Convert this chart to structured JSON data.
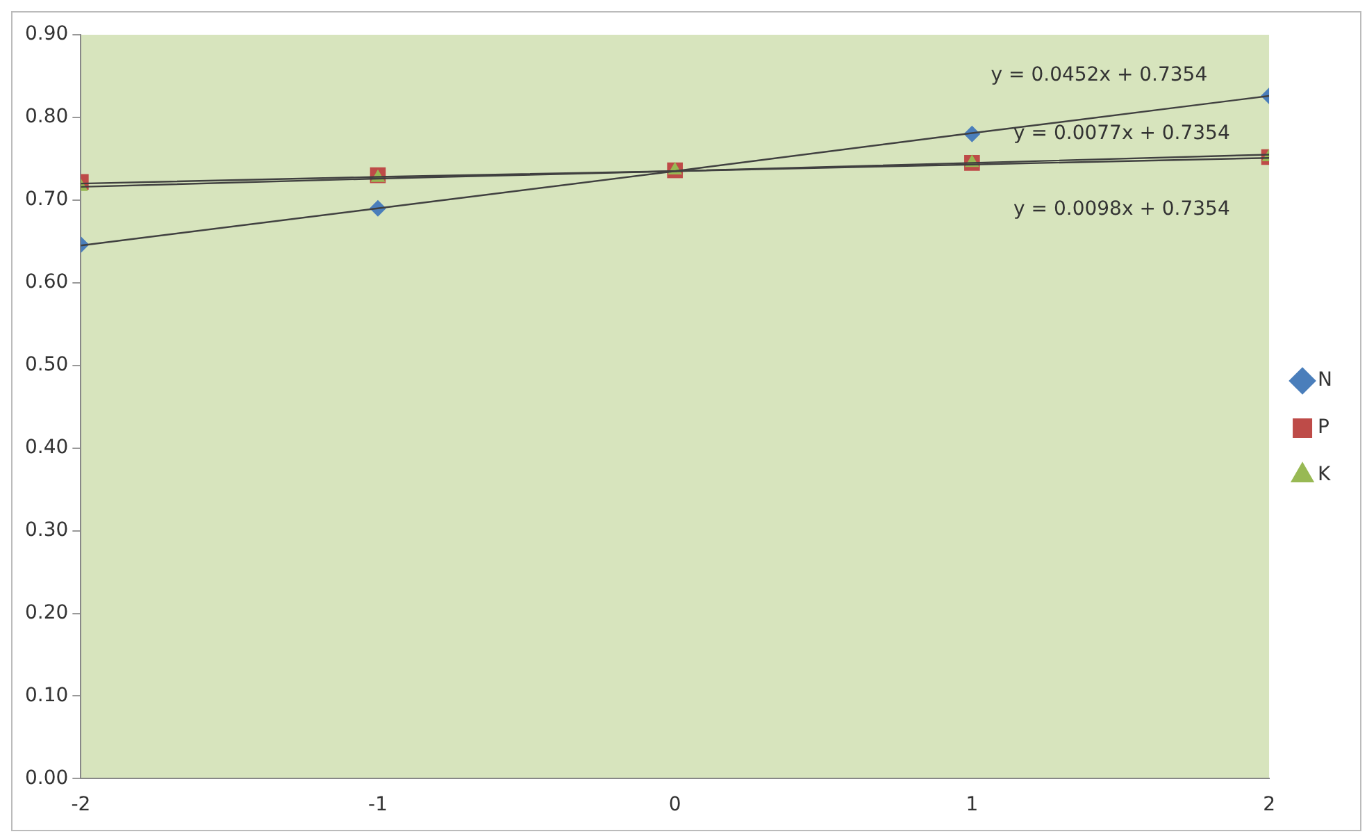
{
  "chart_data": {
    "type": "scatter",
    "xlim": [
      -2,
      2
    ],
    "xticks": [
      -2,
      -1,
      0,
      1,
      2
    ],
    "ylim": [
      0,
      0.9
    ],
    "yticks": [
      {
        "value": 0,
        "label": "0.00"
      },
      {
        "value": 0.1,
        "label": "0.10"
      },
      {
        "value": 0.2,
        "label": "0.20"
      },
      {
        "value": 0.3,
        "label": "0.30"
      },
      {
        "value": 0.4,
        "label": "0.40"
      },
      {
        "value": 0.5,
        "label": "0.50"
      },
      {
        "value": 0.6,
        "label": "0.60"
      },
      {
        "value": 0.7,
        "label": "0.70"
      },
      {
        "value": 0.8,
        "label": "0.80"
      },
      {
        "value": 0.9,
        "label": "0.90"
      }
    ],
    "x": [
      -2,
      -1,
      0,
      1,
      2
    ],
    "grid": false,
    "legend": "right",
    "series": [
      {
        "type": "line",
        "values": [
          0.645,
          0.69,
          0.735,
          0.781,
          0.826
        ],
        "color": "#404040",
        "marker": "none"
      },
      {
        "type": "line",
        "values": [
          0.72,
          0.728,
          0.735,
          0.743,
          0.751
        ],
        "color": "#404040",
        "marker": "none"
      },
      {
        "type": "line",
        "values": [
          0.716,
          0.726,
          0.735,
          0.745,
          0.755
        ],
        "color": "#404040",
        "marker": "none"
      },
      {
        "name": "N",
        "color": "#4a7ebb",
        "marker": "diamond",
        "values": [
          0.646,
          0.69,
          null,
          0.78,
          0.826
        ]
      },
      {
        "name": "P",
        "color": "#be4b48",
        "marker": "square",
        "values": [
          0.722,
          0.73,
          0.736,
          0.745,
          0.752
        ]
      },
      {
        "name": "K",
        "color": "#98b954",
        "marker": "triangle",
        "values": [
          0.716,
          0.727,
          0.736,
          0.745,
          0.752
        ]
      }
    ],
    "annotations": [
      "y = 0.0452x + 0.7354",
      "y = 0.0077x + 0.7354",
      "y = 0.0098x + 0.7354"
    ]
  }
}
